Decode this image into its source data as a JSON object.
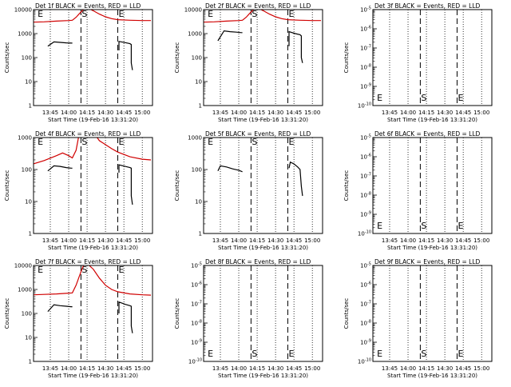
{
  "page": {
    "background": "#ffffff",
    "axis_color": "#000000",
    "events_color": "#000000",
    "lld_color": "#d00000"
  },
  "chart_data": [
    {
      "type": "line",
      "title": "Det 1f BLACK = Events, RED = LLD",
      "xlabel": "Start Time (19-Feb-16 13:31:20)",
      "ylabel": "Counts/sec",
      "y_scale": "log",
      "ylim": [
        1,
        10000
      ],
      "yticks": [
        "1",
        "10",
        "100",
        "1000",
        "10000"
      ],
      "xticks": [
        "13:45",
        "14:00",
        "14:15",
        "14:30",
        "14:45",
        "15:00"
      ],
      "markers": [
        {
          "label": "E",
          "time": "13:34",
          "style": "none"
        },
        {
          "label": "S",
          "time": "14:10",
          "style": "dashed"
        },
        {
          "label": "E",
          "time": "14:40",
          "style": "dashed"
        }
      ],
      "series": [
        {
          "name": "Events",
          "color": "#000000",
          "segments": [
            {
              "x": [
                "13:43",
                "13:48",
                "13:53",
                "13:58",
                "14:02",
                "14:03"
              ],
              "y": [
                300,
                450,
                430,
                410,
                400,
                400
              ]
            },
            {
              "x": [
                "14:41",
                "14:41",
                "14:46",
                "14:50",
                "14:51",
                "14:51",
                "14:52"
              ],
              "y": [
                200,
                470,
                420,
                380,
                350,
                60,
                30
              ]
            }
          ]
        },
        {
          "name": "LLD",
          "color": "#d00000",
          "segments": [
            {
              "x": [
                "13:31",
                "13:40",
                "13:50",
                "14:00",
                "14:03",
                "14:06",
                "14:09",
                "14:12",
                "14:15",
                "14:20",
                "14:25",
                "14:30",
                "14:35",
                "14:40",
                "14:50",
                "15:00",
                "15:07"
              ],
              "y": [
                3000,
                3100,
                3300,
                3500,
                3600,
                4800,
                7000,
                10000,
                12000,
                9000,
                6500,
                5000,
                4200,
                3800,
                3600,
                3500,
                3500
              ]
            }
          ]
        }
      ]
    },
    {
      "type": "line",
      "title": "Det 2f BLACK = Events, RED = LLD",
      "xlabel": "Start Time (19-Feb-16 13:31:20)",
      "ylabel": "Counts/sec",
      "y_scale": "log",
      "ylim": [
        1,
        10000
      ],
      "yticks": [
        "1",
        "10",
        "100",
        "1000",
        "10000"
      ],
      "xticks": [
        "13:45",
        "14:00",
        "14:15",
        "14:30",
        "14:45",
        "15:00"
      ],
      "markers": [
        {
          "label": "E",
          "time": "13:34",
          "style": "none"
        },
        {
          "label": "S",
          "time": "14:10",
          "style": "dashed"
        },
        {
          "label": "E",
          "time": "14:40",
          "style": "dashed"
        }
      ],
      "series": [
        {
          "name": "Events",
          "color": "#000000",
          "segments": [
            {
              "x": [
                "13:43",
                "13:48",
                "13:53",
                "13:58",
                "14:02",
                "14:03"
              ],
              "y": [
                500,
                1300,
                1200,
                1150,
                1100,
                1100
              ]
            },
            {
              "x": [
                "14:41",
                "14:41",
                "14:46",
                "14:50",
                "14:51",
                "14:51",
                "14:52"
              ],
              "y": [
                300,
                1200,
                1000,
                900,
                800,
                100,
                60
              ]
            }
          ]
        },
        {
          "name": "LLD",
          "color": "#d00000",
          "segments": [
            {
              "x": [
                "13:31",
                "13:40",
                "13:50",
                "14:00",
                "14:03",
                "14:06",
                "14:09",
                "14:12",
                "14:15",
                "14:20",
                "14:25",
                "14:30",
                "14:35",
                "14:40",
                "14:50",
                "15:00",
                "15:07"
              ],
              "y": [
                3000,
                3100,
                3300,
                3500,
                3600,
                4800,
                7000,
                10000,
                12000,
                9000,
                6500,
                5000,
                4200,
                3800,
                3600,
                3500,
                3500
              ]
            }
          ]
        }
      ]
    },
    {
      "type": "line",
      "title": "Det 3f BLACK = Events, RED = LLD",
      "xlabel": "Start Time (19-Feb-16 13:31:20)",
      "ylabel": "Counts/sec",
      "y_scale": "log",
      "ylim": [
        1e-10,
        1e-05
      ],
      "yticks": [
        "10^-10",
        "10^-9",
        "10^-8",
        "10^-7",
        "10^-6",
        "10^-5"
      ],
      "xticks": [
        "13:45",
        "14:00",
        "14:15",
        "14:30",
        "14:45",
        "15:00"
      ],
      "markers": [
        {
          "label": "E",
          "time": "13:34",
          "style": "none"
        },
        {
          "label": "S",
          "time": "14:10",
          "style": "dashed"
        },
        {
          "label": "E",
          "time": "14:40",
          "style": "dashed"
        }
      ],
      "series": []
    },
    {
      "type": "line",
      "title": "Det 4f BLACK = Events, RED = LLD",
      "xlabel": "Start Time (19-Feb-16 13:31:20)",
      "ylabel": "Counts/sec",
      "y_scale": "log",
      "ylim": [
        1,
        1000
      ],
      "yticks": [
        "1",
        "10",
        "100",
        "1000"
      ],
      "xticks": [
        "13:45",
        "14:00",
        "14:15",
        "14:30",
        "14:45",
        "15:00"
      ],
      "markers": [
        {
          "label": "E",
          "time": "13:34",
          "style": "none"
        },
        {
          "label": "S",
          "time": "14:10",
          "style": "dashed"
        },
        {
          "label": "E",
          "time": "14:40",
          "style": "dashed"
        }
      ],
      "series": [
        {
          "name": "Events",
          "color": "#000000",
          "segments": [
            {
              "x": [
                "13:43",
                "13:48",
                "13:53",
                "13:58",
                "14:02",
                "14:03"
              ],
              "y": [
                90,
                130,
                125,
                115,
                110,
                110
              ]
            },
            {
              "x": [
                "14:41",
                "14:41",
                "14:46",
                "14:50",
                "14:51",
                "14:51",
                "14:52"
              ],
              "y": [
                80,
                140,
                125,
                115,
                110,
                15,
                8
              ]
            }
          ]
        },
        {
          "name": "LLD",
          "color": "#d00000",
          "segments": [
            {
              "x": [
                "13:31",
                "13:40",
                "13:50",
                "13:55",
                "14:00",
                "14:03",
                "14:06",
                "14:08",
                "14:10",
                "14:15",
                "14:20",
                "14:25",
                "14:30",
                "14:35",
                "14:40",
                "14:50",
                "15:00",
                "15:07"
              ],
              "y": [
                150,
                190,
                270,
                330,
                270,
                230,
                400,
                1000,
                2000,
                3000,
                1500,
                800,
                600,
                450,
                350,
                250,
                210,
                200
              ]
            }
          ]
        }
      ]
    },
    {
      "type": "line",
      "title": "Det 5f BLACK = Events, RED = LLD",
      "xlabel": "Start Time (19-Feb-16 13:31:20)",
      "ylabel": "Counts/sec",
      "y_scale": "log",
      "ylim": [
        1,
        1000
      ],
      "yticks": [
        "1",
        "10",
        "100",
        "1000"
      ],
      "xticks": [
        "13:45",
        "14:00",
        "14:15",
        "14:30",
        "14:45",
        "15:00"
      ],
      "markers": [
        {
          "label": "E",
          "time": "13:34",
          "style": "none"
        },
        {
          "label": "S",
          "time": "14:10",
          "style": "dashed"
        },
        {
          "label": "E",
          "time": "14:40",
          "style": "dashed"
        }
      ],
      "series": [
        {
          "name": "Events",
          "color": "#000000",
          "segments": [
            {
              "x": [
                "13:43",
                "13:45",
                "13:50",
                "13:55",
                "14:00",
                "14:03"
              ],
              "y": [
                90,
                130,
                120,
                105,
                95,
                85
              ]
            },
            {
              "x": [
                "14:41",
                "14:42",
                "14:45",
                "14:48",
                "14:50",
                "14:51",
                "14:52"
              ],
              "y": [
                110,
                170,
                150,
                120,
                100,
                30,
                15
              ]
            }
          ]
        }
      ]
    },
    {
      "type": "line",
      "title": "Det 6f BLACK = Events, RED = LLD",
      "xlabel": "Start Time (19-Feb-16 13:31:20)",
      "ylabel": "Counts/sec",
      "y_scale": "log",
      "ylim": [
        1e-10,
        1e-05
      ],
      "yticks": [
        "10^-10",
        "10^-9",
        "10^-8",
        "10^-7",
        "10^-6",
        "10^-5"
      ],
      "xticks": [
        "13:45",
        "14:00",
        "14:15",
        "14:30",
        "14:45",
        "15:00"
      ],
      "markers": [
        {
          "label": "E",
          "time": "13:34",
          "style": "none"
        },
        {
          "label": "S",
          "time": "14:10",
          "style": "dashed"
        },
        {
          "label": "E",
          "time": "14:40",
          "style": "dashed"
        }
      ],
      "series": []
    },
    {
      "type": "line",
      "title": "Det 7f BLACK = Events, RED = LLD",
      "xlabel": "Start Time (19-Feb-16 13:31:20)",
      "ylabel": "Counts/sec",
      "y_scale": "log",
      "ylim": [
        1,
        10000
      ],
      "yticks": [
        "1",
        "10",
        "100",
        "1000",
        "10000"
      ],
      "xticks": [
        "13:45",
        "14:00",
        "14:15",
        "14:30",
        "14:45",
        "15:00"
      ],
      "markers": [
        {
          "label": "E",
          "time": "13:34",
          "style": "none"
        },
        {
          "label": "S",
          "time": "14:10",
          "style": "dashed"
        },
        {
          "label": "E",
          "time": "14:40",
          "style": "dashed"
        }
      ],
      "series": [
        {
          "name": "Events",
          "color": "#000000",
          "segments": [
            {
              "x": [
                "13:43",
                "13:48",
                "13:53",
                "13:58",
                "14:02",
                "14:03"
              ],
              "y": [
                120,
                230,
                210,
                200,
                190,
                190
              ]
            },
            {
              "x": [
                "14:41",
                "14:41",
                "14:46",
                "14:50",
                "14:51",
                "14:51",
                "14:52"
              ],
              "y": [
                100,
                300,
                240,
                210,
                200,
                30,
                15
              ]
            }
          ]
        },
        {
          "name": "LLD",
          "color": "#d00000",
          "segments": [
            {
              "x": [
                "13:31",
                "13:40",
                "13:50",
                "14:00",
                "14:03",
                "14:06",
                "14:09",
                "14:12",
                "14:15",
                "14:20",
                "14:25",
                "14:30",
                "14:35",
                "14:40",
                "14:50",
                "15:00",
                "15:07"
              ],
              "y": [
                600,
                620,
                650,
                700,
                720,
                1500,
                4000,
                10000,
                12000,
                7000,
                3000,
                1500,
                1000,
                800,
                650,
                600,
                580
              ]
            }
          ]
        }
      ]
    },
    {
      "type": "line",
      "title": "Det 8f BLACK = Events, RED = LLD",
      "xlabel": "Start Time (19-Feb-16 13:31:20)",
      "ylabel": "Counts/sec",
      "y_scale": "log",
      "ylim": [
        1e-10,
        1e-05
      ],
      "yticks": [
        "10^-10",
        "10^-9",
        "10^-8",
        "10^-7",
        "10^-6",
        "10^-5"
      ],
      "xticks": [
        "13:45",
        "14:00",
        "14:15",
        "14:30",
        "14:45",
        "15:00"
      ],
      "markers": [
        {
          "label": "E",
          "time": "13:34",
          "style": "none"
        },
        {
          "label": "S",
          "time": "14:10",
          "style": "dashed"
        },
        {
          "label": "E",
          "time": "14:40",
          "style": "dashed"
        }
      ],
      "series": []
    },
    {
      "type": "line",
      "title": "Det 9f BLACK = Events, RED = LLD",
      "xlabel": "Start Time (19-Feb-16 13:31:20)",
      "ylabel": "Counts/sec",
      "y_scale": "log",
      "ylim": [
        1e-10,
        1e-05
      ],
      "yticks": [
        "10^-10",
        "10^-9",
        "10^-8",
        "10^-7",
        "10^-6",
        "10^-5"
      ],
      "xticks": [
        "13:45",
        "14:00",
        "14:15",
        "14:30",
        "14:45",
        "15:00"
      ],
      "markers": [
        {
          "label": "E",
          "time": "13:34",
          "style": "none"
        },
        {
          "label": "S",
          "time": "14:10",
          "style": "dashed"
        },
        {
          "label": "E",
          "time": "14:40",
          "style": "dashed"
        }
      ],
      "series": []
    }
  ]
}
